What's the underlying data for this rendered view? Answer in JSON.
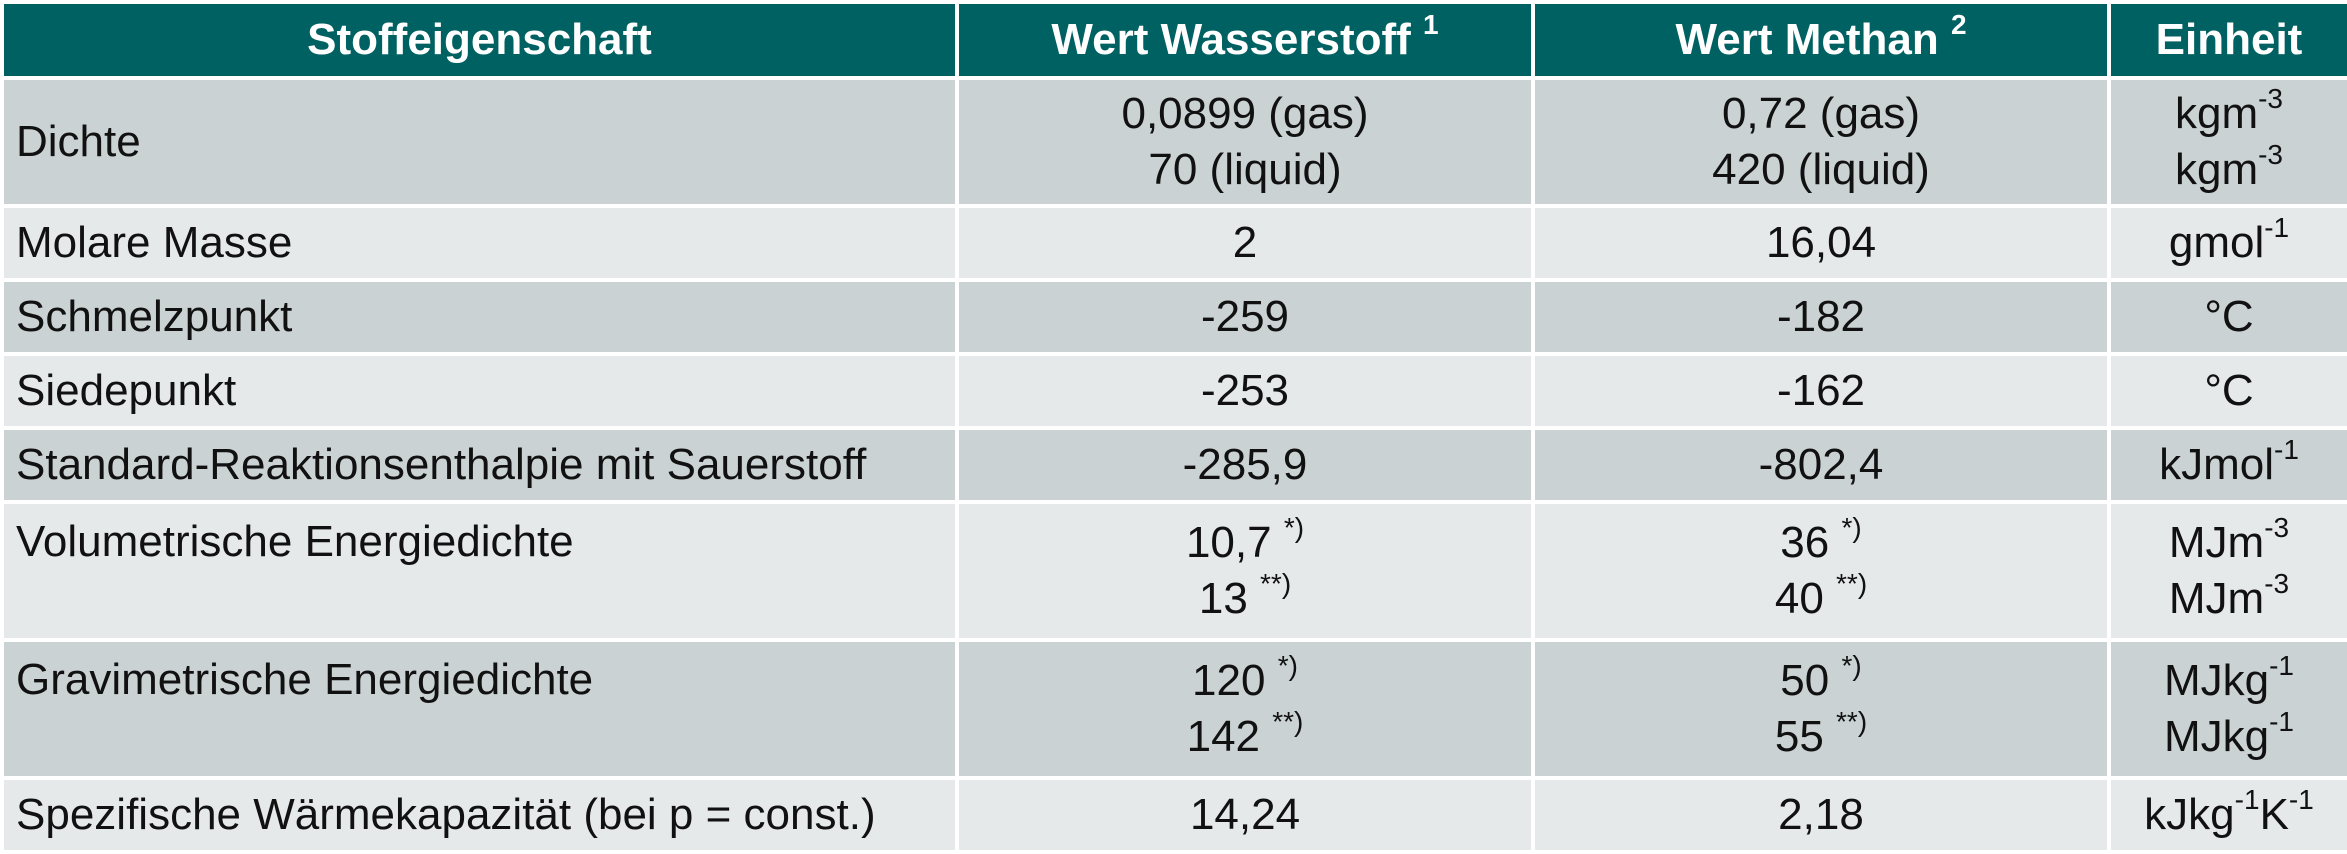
{
  "headers": {
    "property": "Stoffeigenschaft",
    "hydrogen": "Wert Wasserstoff",
    "hydrogen_note": "1",
    "methane": "Wert Methan",
    "methane_note": "2",
    "unit": "Einheit"
  },
  "rows": [
    {
      "property": "Dichte",
      "hydrogen": [
        "0,0899 (gas)",
        "70 (liquid)"
      ],
      "methane": [
        "0,72 (gas)",
        "420 (liquid)"
      ],
      "unit": [
        {
          "base": "kgm",
          "sup": "-3"
        },
        {
          "base": "kgm",
          "sup": "-3"
        }
      ]
    },
    {
      "property": "Molare Masse",
      "hydrogen": "2",
      "methane": "16,04",
      "unit": {
        "base": "gmol",
        "sup": "-1"
      }
    },
    {
      "property": "Schmelzpunkt",
      "hydrogen": "-259",
      "methane": "-182",
      "unit": "°C"
    },
    {
      "property": "Siedepunkt",
      "hydrogen": "-253",
      "methane": "-162",
      "unit": "°C"
    },
    {
      "property": "Standard-Reaktionsenthalpie mit Sauerstoff",
      "hydrogen": "-285,9",
      "methane": "-802,4",
      "unit": {
        "base": "kJmol",
        "sup": "-1"
      }
    },
    {
      "property": "Volumetrische Energiedichte",
      "hydrogen": [
        {
          "value": "10,7",
          "note": "*)"
        },
        {
          "value": "13",
          "note": "**)"
        }
      ],
      "methane": [
        {
          "value": "36",
          "note": "*)"
        },
        {
          "value": "40",
          "note": "**)"
        }
      ],
      "unit": [
        {
          "base": "MJm",
          "sup": "-3"
        },
        {
          "base": "MJm",
          "sup": "-3"
        }
      ]
    },
    {
      "property": "Gravimetrische Energiedichte",
      "hydrogen": [
        {
          "value": "120",
          "note": "*)"
        },
        {
          "value": "142",
          "note": "**)"
        }
      ],
      "methane": [
        {
          "value": "50",
          "note": "*)"
        },
        {
          "value": "55",
          "note": "**)"
        }
      ],
      "unit": [
        {
          "base": "MJkg",
          "sup": "-1"
        },
        {
          "base": "MJkg",
          "sup": "-1"
        }
      ]
    },
    {
      "property": "Spezifische Wärmekapazität (bei p = const.)",
      "hydrogen": "14,24",
      "methane": "2,18",
      "unit": {
        "base1": "kJkg",
        "sup1": "-1",
        "base2": "K",
        "sup2": "-1"
      }
    }
  ],
  "colors": {
    "header_bg": "#006162",
    "row_dark": "#cbd2d4",
    "row_light": "#e6e9ea"
  }
}
